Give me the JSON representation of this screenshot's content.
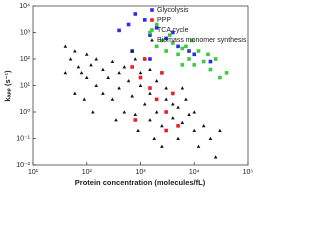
{
  "chart_data": {
    "type": "scatter",
    "x_label": "Protein concentration (molecules/fL)",
    "y_label": "kₐₚₚ (s⁻¹)",
    "xscale": "log",
    "yscale": "log",
    "grid": false,
    "legend": "upper right",
    "xlim": [
      10,
      100000
    ],
    "ylim": [
      0.01,
      10000
    ],
    "xticks": [
      {
        "value": 10,
        "label": "10¹"
      },
      {
        "value": 100,
        "label": "10²"
      },
      {
        "value": 1000,
        "label": "10³"
      },
      {
        "value": 10000,
        "label": "10⁴"
      },
      {
        "value": 100000,
        "label": "10⁵"
      }
    ],
    "yticks": [
      {
        "value": 10000,
        "label": "10⁴"
      },
      {
        "value": 1000,
        "label": "10³"
      },
      {
        "value": 100,
        "label": "10²"
      },
      {
        "value": 10,
        "label": "10¹"
      },
      {
        "value": 1,
        "label": "10⁰"
      },
      {
        "value": 0.1,
        "label": "10⁻¹"
      },
      {
        "value": 0.01,
        "label": "10⁻²"
      }
    ],
    "series": [
      {
        "name": "Glycolysis",
        "color": "#2a2aee",
        "marker": "square",
        "x": [
          600,
          800,
          1200,
          1500,
          2000,
          3000,
          4000,
          5000,
          8000,
          10000,
          700,
          1500,
          400,
          20000
        ],
        "values": [
          2000,
          5000,
          3000,
          800,
          1500,
          600,
          1000,
          300,
          200,
          150,
          200,
          100,
          1200,
          80
        ]
      },
      {
        "name": "PPP",
        "color": "#e8202a",
        "marker": "square",
        "x": [
          700,
          1000,
          1500,
          2000,
          3000,
          5000,
          1200,
          800,
          3000,
          2500,
          4000
        ],
        "values": [
          50,
          20,
          8,
          3,
          1,
          0.3,
          100,
          0.5,
          0.2,
          30,
          5
        ]
      },
      {
        "name": "TCA cycle",
        "color": "#3ec83e",
        "marker": "square",
        "x": [
          1500,
          2000,
          2500,
          3000,
          4000,
          5000,
          6000,
          8000,
          10000,
          12000,
          15000,
          20000,
          25000,
          30000,
          40000,
          2000,
          3500,
          7000,
          9000,
          18000,
          6000
        ],
        "values": [
          1000,
          300,
          500,
          200,
          400,
          150,
          250,
          100,
          60,
          200,
          80,
          40,
          100,
          20,
          30,
          2000,
          800,
          300,
          500,
          150,
          60
        ]
      },
      {
        "name": "Biomass monomer synthesis",
        "color": "#111111",
        "marker": "triangle",
        "x": [
          40,
          50,
          60,
          70,
          80,
          100,
          100,
          120,
          150,
          150,
          200,
          200,
          250,
          300,
          300,
          400,
          400,
          500,
          500,
          600,
          700,
          800,
          800,
          1000,
          1000,
          1200,
          1500,
          1500,
          2000,
          2000,
          2500,
          3000,
          3000,
          4000,
          4000,
          5000,
          5000,
          6000,
          7000,
          8000,
          10000,
          10000,
          12000,
          15000,
          20000,
          25000,
          30000,
          60,
          90,
          130,
          350,
          900,
          1800,
          700,
          2500,
          40,
          6000,
          1500
        ],
        "values": [
          300,
          100,
          200,
          50,
          30,
          150,
          20,
          60,
          10,
          100,
          40,
          5,
          20,
          80,
          3,
          30,
          8,
          1,
          50,
          15,
          4,
          100,
          0.8,
          10,
          30,
          2,
          5,
          0.5,
          15,
          1,
          0.3,
          3,
          8,
          0.6,
          2,
          0.1,
          1.5,
          0.4,
          3,
          0.8,
          0.2,
          1,
          0.05,
          0.3,
          0.1,
          0.02,
          0.2,
          5,
          3,
          1,
          0.5,
          0.2,
          0.1,
          200,
          0.05,
          30,
          8,
          40
        ]
      }
    ]
  }
}
